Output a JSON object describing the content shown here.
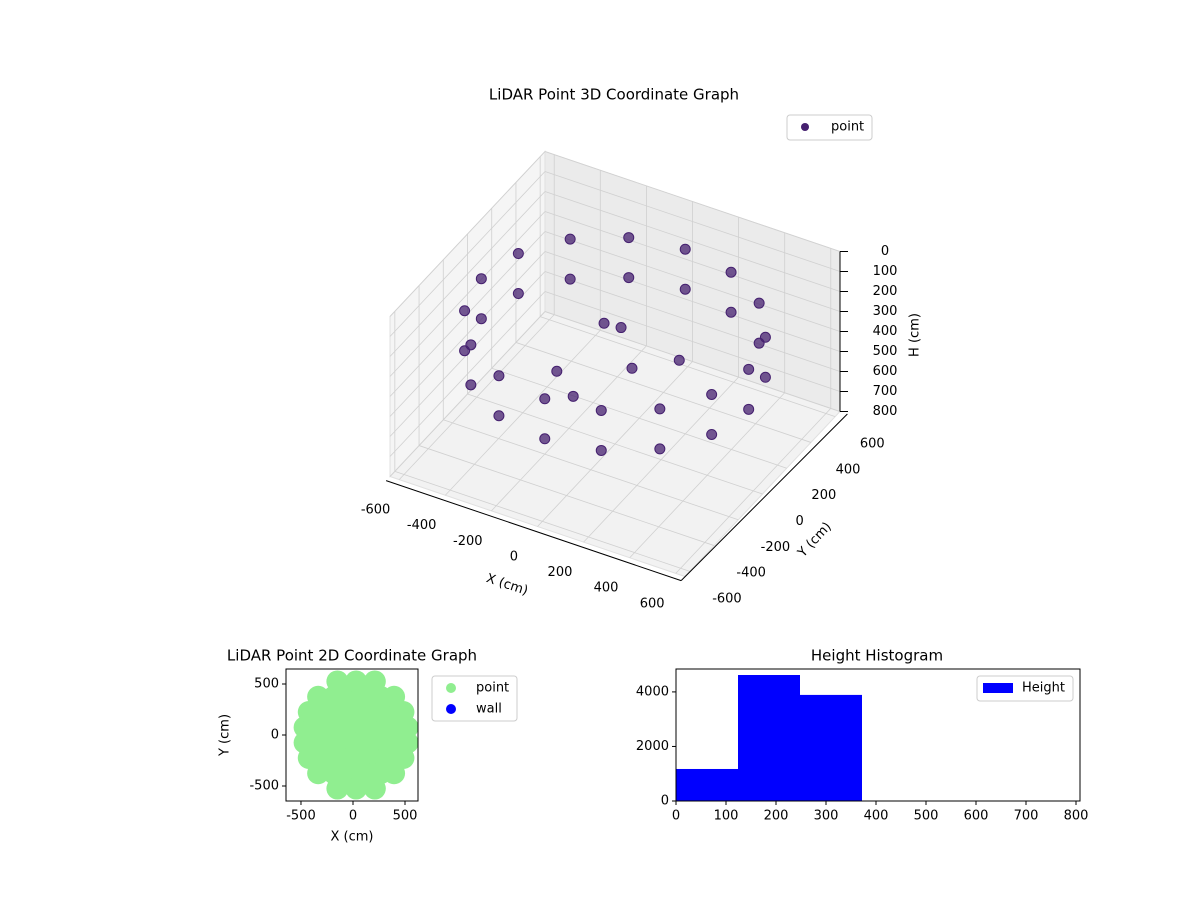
{
  "chart_data": [
    {
      "type": "scatter3d",
      "title": "LiDAR Point 3D Coordinate Graph",
      "xlabel": "X (cm)",
      "ylabel": "Y (cm)",
      "zlabel": "H (cm)",
      "xlim": [
        -640,
        640
      ],
      "ylim": [
        -640,
        640
      ],
      "zlim": [
        800,
        0
      ],
      "xticks": [
        -600,
        -400,
        -200,
        0,
        200,
        400,
        600
      ],
      "yticks": [
        -600,
        -400,
        -200,
        0,
        200,
        400,
        600
      ],
      "zticks": [
        0,
        100,
        200,
        300,
        400,
        500,
        600,
        700,
        800
      ],
      "series": [
        {
          "name": "point",
          "color": "#45206f",
          "x": [
            580,
            536,
            410,
            222,
            0,
            -222,
            -410,
            -536,
            -580,
            -536,
            -410,
            -222,
            0,
            222,
            410,
            536,
            580,
            536,
            410,
            222,
            0,
            -222,
            -410,
            -536,
            -580,
            -536,
            -410,
            -222,
            0,
            222,
            410,
            536,
            -100,
            0,
            100,
            -200,
            200,
            -50
          ],
          "y": [
            0,
            222,
            410,
            536,
            580,
            536,
            410,
            222,
            0,
            -222,
            -410,
            -536,
            -580,
            -536,
            -410,
            -222,
            0,
            222,
            410,
            536,
            580,
            536,
            410,
            222,
            0,
            -222,
            -410,
            -536,
            -580,
            -536,
            -410,
            -222,
            100,
            50,
            -50,
            -100,
            150,
            -250
          ],
          "z": [
            200,
            200,
            200,
            200,
            200,
            200,
            200,
            200,
            200,
            200,
            200,
            200,
            200,
            200,
            200,
            200,
            400,
            400,
            400,
            400,
            400,
            400,
            400,
            400,
            400,
            400,
            400,
            400,
            400,
            400,
            400,
            400,
            300,
            250,
            350,
            450,
            400,
            420
          ]
        }
      ]
    },
    {
      "type": "scatter",
      "title": "LiDAR Point 2D Coordinate Graph",
      "xlabel": "X (cm)",
      "ylabel": "Y (cm)",
      "xlim": [
        -644,
        625
      ],
      "ylim": [
        -647,
        647
      ],
      "xticks": [
        -500,
        0,
        500
      ],
      "yticks": [
        -500,
        0,
        500
      ],
      "series": [
        {
          "name": "point",
          "color": "#90ee90",
          "x": [
            -465,
            -315,
            -165,
            -15,
            135,
            285,
            435,
            525,
            -465,
            -315,
            -165,
            -15,
            135,
            285,
            435,
            525,
            -425,
            -275,
            -125,
            25,
            175,
            325,
            485,
            -425,
            -275,
            -125,
            25,
            175,
            325,
            485,
            -335,
            -185,
            -35,
            115,
            265,
            395,
            -335,
            -185,
            -35,
            115,
            265,
            395,
            -150,
            30,
            210,
            -150,
            30,
            210
          ],
          "y": [
            75,
            75,
            75,
            75,
            75,
            75,
            75,
            75,
            -75,
            -75,
            -75,
            -75,
            -75,
            -75,
            -75,
            -75,
            225,
            225,
            225,
            225,
            225,
            225,
            225,
            -225,
            -225,
            -225,
            -225,
            -225,
            -225,
            -225,
            375,
            375,
            375,
            375,
            375,
            375,
            -375,
            -375,
            -375,
            -375,
            -375,
            -375,
            525,
            525,
            525,
            -525,
            -525,
            -525
          ]
        },
        {
          "name": "wall",
          "color": "#0000ff",
          "x": [],
          "y": []
        }
      ]
    },
    {
      "type": "histogram",
      "title": "Height Histogram",
      "name": "Height",
      "color": "#0000ff",
      "bins": [
        0,
        124,
        248,
        372,
        496,
        620,
        744,
        808
      ],
      "counts": [
        1174,
        4620,
        3890,
        0,
        0,
        0,
        0
      ],
      "xlim": [
        0,
        808
      ],
      "ylim": [
        0,
        4840
      ],
      "xticks": [
        0,
        100,
        200,
        300,
        400,
        500,
        600,
        700,
        800
      ],
      "yticks": [
        0,
        2000,
        4000
      ]
    }
  ]
}
